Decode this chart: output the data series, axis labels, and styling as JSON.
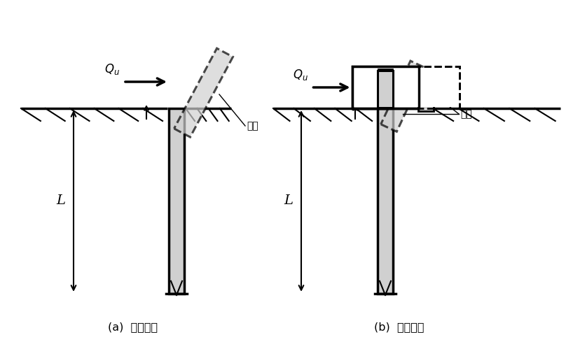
{
  "background_color": "#ffffff",
  "title_a": "(a)  두부자유",
  "title_b": "(b)  두부구속",
  "label_crack": "균열",
  "pile_color": "#d0d0d0",
  "dashed_color": "#666666",
  "font_name": "NanumGothic"
}
